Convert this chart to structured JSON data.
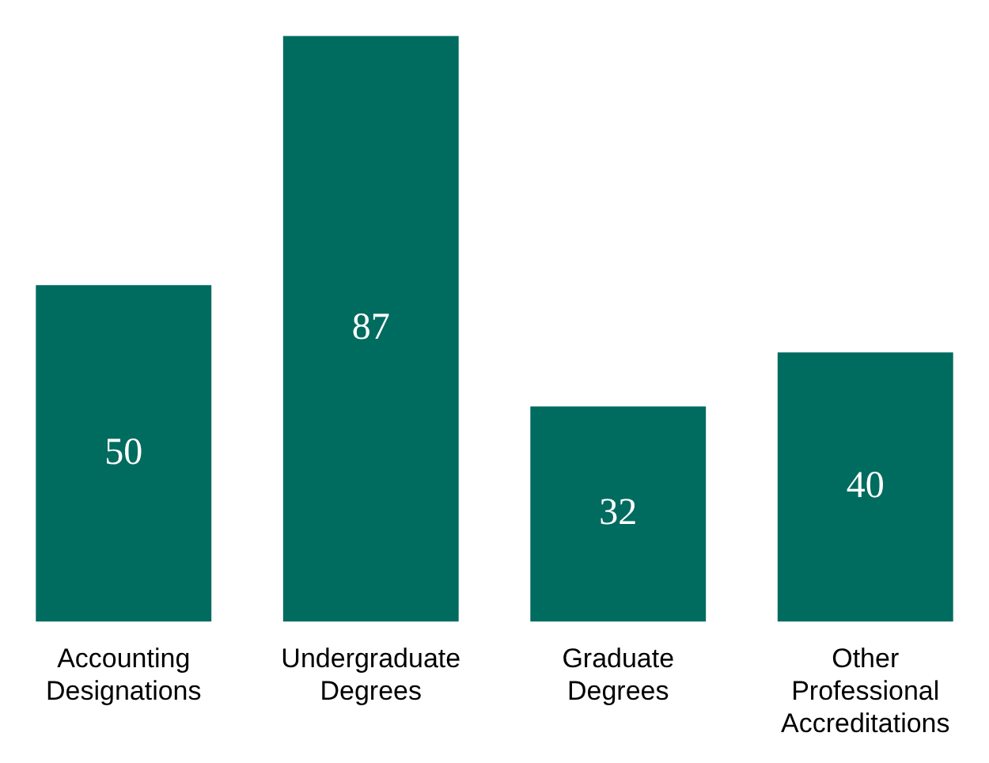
{
  "chart_data": {
    "type": "bar",
    "categories": [
      "Accounting Designations",
      "Undergraduate Degrees",
      "Graduate Degrees",
      "Other Professional Accreditations"
    ],
    "values": [
      50,
      87,
      32,
      40
    ],
    "color": "#006b5f",
    "data_labels": true
  }
}
